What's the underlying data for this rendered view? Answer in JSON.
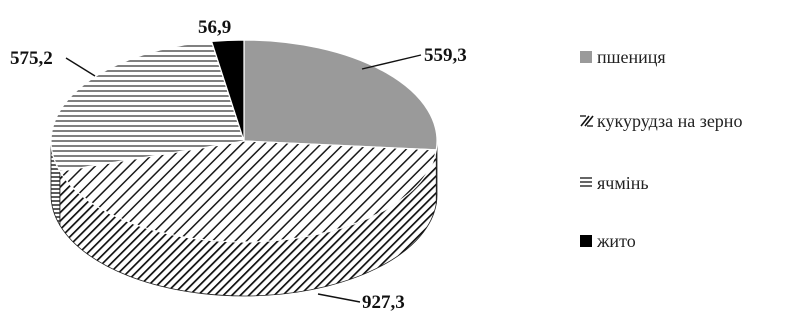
{
  "chart_data": {
    "type": "pie",
    "title": "",
    "categories": [
      "пшениця",
      "кукурудза  на зерно",
      "ячмінь",
      "жито"
    ],
    "values": [
      559.3,
      927.3,
      575.2,
      56.9
    ],
    "labels": [
      "559,3",
      "927,3",
      "575,2",
      "56,9"
    ],
    "legend_position": "right",
    "three_d": true
  },
  "legend": {
    "items": [
      {
        "symbol": "■",
        "label": "пшениця"
      },
      {
        "symbol": "⁄⁄",
        "label": "кукурудза  на зерно"
      },
      {
        "symbol": "≡",
        "label": "ячмінь"
      },
      {
        "symbol": "■",
        "label": "жито"
      }
    ]
  },
  "colors": {
    "wheat": "#9a9a9a",
    "corn_stripe": "#1a1a1a",
    "barley_stripe": "#555555",
    "rye": "#000000"
  }
}
